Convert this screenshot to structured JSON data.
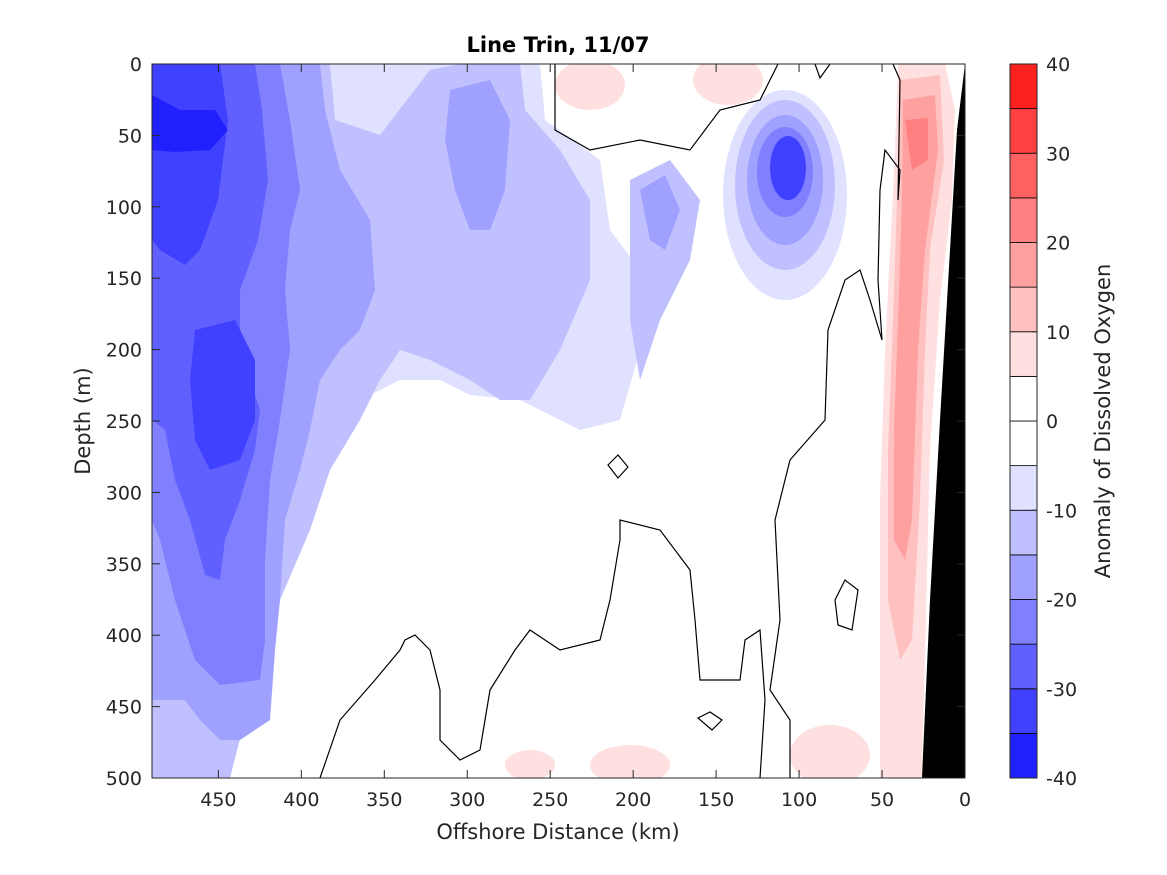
{
  "chart_data": {
    "type": "heatmap",
    "title": "Line Trin, 11/07",
    "xlabel": "Offshore Distance (km)",
    "ylabel": "Depth (m)",
    "colorbar_label": "Anomaly of Dissolved Oxygen",
    "x_direction": "reversed",
    "y_direction": "reversed (depth increases downward)",
    "xlim": [
      490,
      0
    ],
    "ylim": [
      0,
      500
    ],
    "x_ticks": [
      450,
      400,
      350,
      300,
      250,
      200,
      150,
      100,
      50,
      0
    ],
    "y_ticks": [
      0,
      50,
      100,
      150,
      200,
      250,
      300,
      350,
      400,
      450,
      500
    ],
    "colorbar_range": [
      -40,
      40
    ],
    "colorbar_ticks": [
      40,
      30,
      20,
      10,
      0,
      -10,
      -20,
      -30,
      -40
    ],
    "colormap": {
      "levels": [
        -40,
        -35,
        -30,
        -25,
        -20,
        -15,
        -10,
        -5,
        0,
        5,
        10,
        15,
        20,
        25,
        30,
        35,
        40
      ],
      "colors": [
        "#0000ff",
        "#2020ff",
        "#4040ff",
        "#6060ff",
        "#8080ff",
        "#a0a0ff",
        "#c0c0ff",
        "#e0e0ff",
        "#ffffff",
        "#ffffff",
        "#ffe0e0",
        "#ffc0c0",
        "#ffa0a0",
        "#ff8080",
        "#ff6060",
        "#ff4040",
        "#ff2020"
      ]
    },
    "zero_contour_color": "#000000",
    "bathymetry_color": "#000000",
    "regions_description": [
      {
        "area": "far offshore 400-490 km, 0-150 m",
        "anomaly_approx": -30
      },
      {
        "area": "offshore 380-480 km, 150-400 m",
        "anomaly_approx": -20
      },
      {
        "area": "mid-section 300-380 km, 0-350 m",
        "anomaly_approx": -10
      },
      {
        "area": "eddy near 100 km, 80 m",
        "anomaly_approx": -25
      },
      {
        "area": "nearshore band 15-50 km, 0-450 m",
        "anomaly_approx": 10
      },
      {
        "area": "nearshore core 20-40 km, 250-350 m",
        "anomaly_approx": 15
      },
      {
        "area": "150-300 km, 250-500 m",
        "anomaly_approx": 0
      }
    ]
  }
}
